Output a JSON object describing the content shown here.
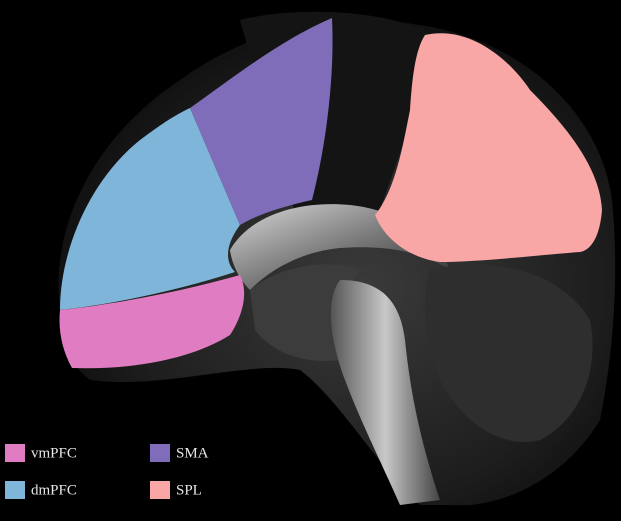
{
  "legend": {
    "items": [
      {
        "label": "vmPFC",
        "color": "#e07cc2"
      },
      {
        "label": "dmPFC",
        "color": "#7fb5d9"
      },
      {
        "label": "SMA",
        "color": "#7f6db9"
      },
      {
        "label": "SPL",
        "color": "#f8a6a6"
      }
    ]
  }
}
